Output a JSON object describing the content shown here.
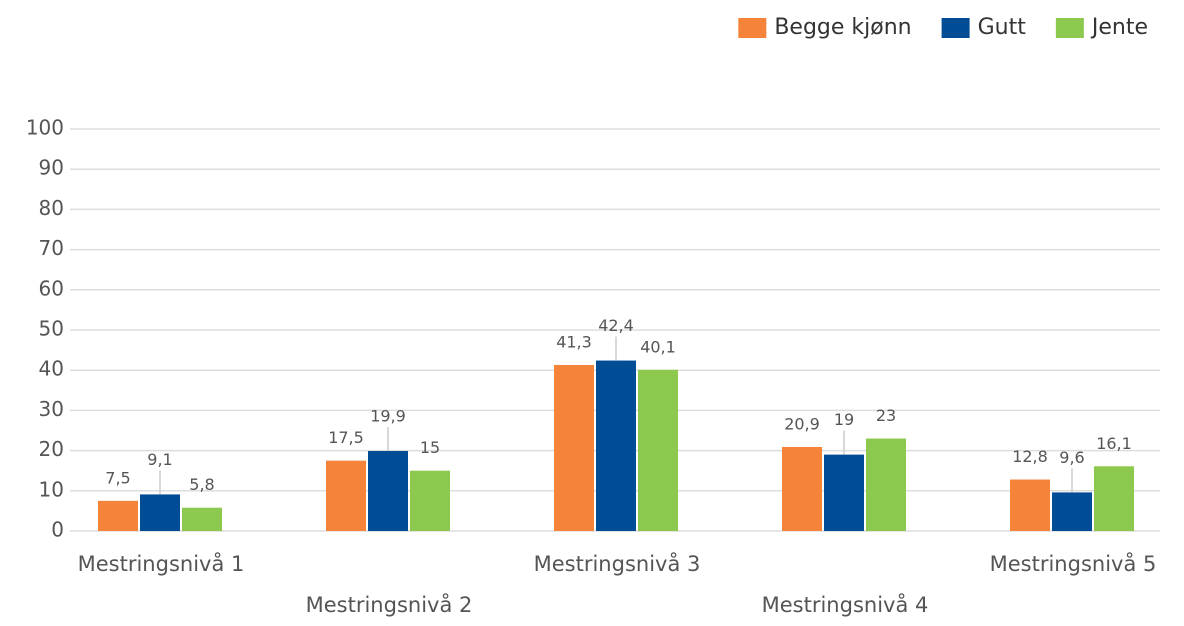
{
  "chart_data": {
    "type": "bar",
    "categories": [
      "Mestringsnivå 1",
      "Mestringsnivå 2",
      "Mestringsnivå 3",
      "Mestringsnivå 4",
      "Mestringsnivå 5"
    ],
    "series": [
      {
        "name": "Begge kjønn",
        "color": "#f5843a",
        "values": [
          7.5,
          17.5,
          41.3,
          20.9,
          12.8
        ],
        "value_labels": [
          "7,5",
          "17,5",
          "41,3",
          "20,9",
          "12,8"
        ]
      },
      {
        "name": "Gutt",
        "color": "#004d96",
        "values": [
          9.1,
          19.9,
          42.4,
          19,
          9.6
        ],
        "value_labels": [
          "9,1",
          "19,9",
          "42,4",
          "19",
          "9,6"
        ]
      },
      {
        "name": "Jente",
        "color": "#8dc94f",
        "values": [
          5.8,
          15,
          40.1,
          23,
          16.1
        ],
        "value_labels": [
          "5,8",
          "15",
          "40,1",
          "23",
          "16,1"
        ]
      }
    ],
    "ylim": [
      0,
      100
    ],
    "yticks": [
      0,
      10,
      20,
      30,
      40,
      50,
      60,
      70,
      80,
      90,
      100
    ],
    "grid": true,
    "legend": "top-right"
  }
}
